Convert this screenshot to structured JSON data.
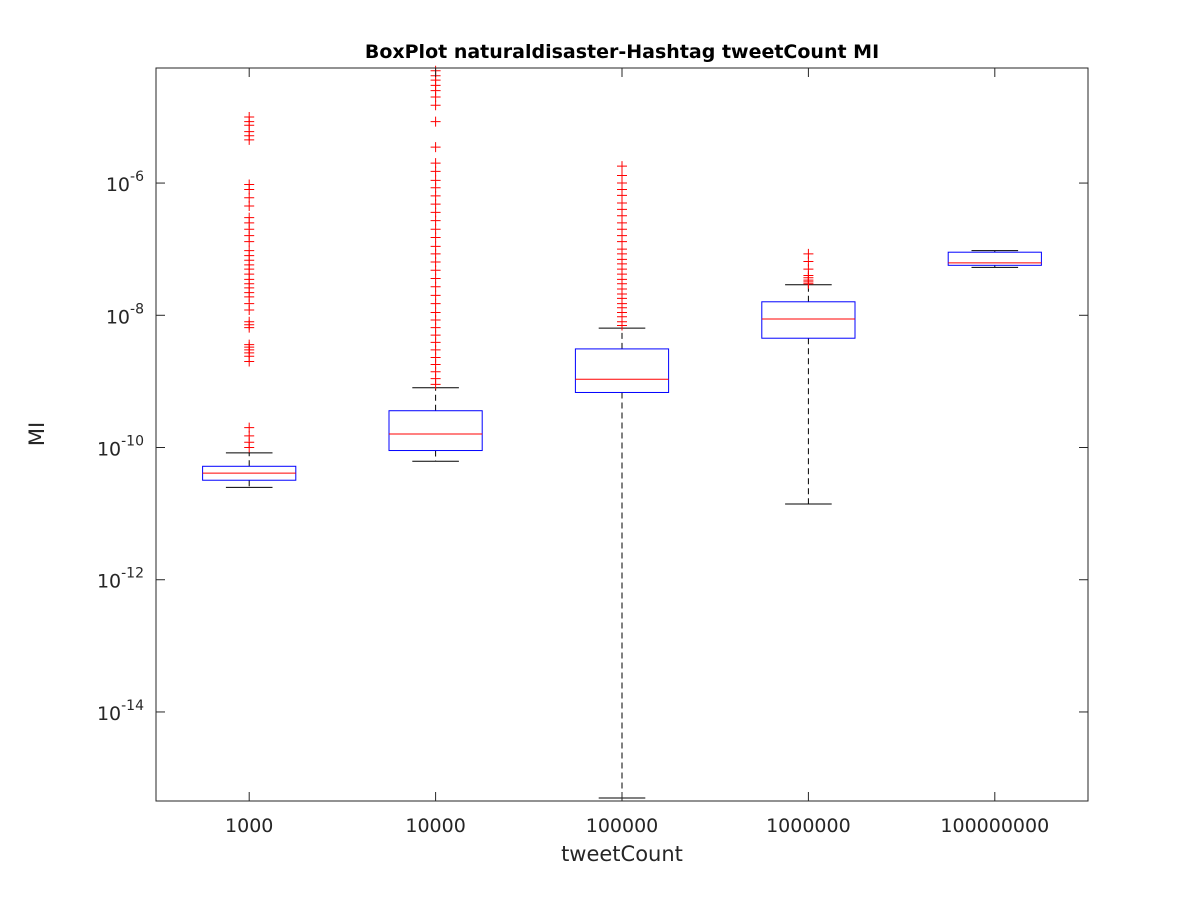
{
  "chart_data": {
    "type": "box",
    "title": "BoxPlot naturaldisaster-Hashtag tweetCount MI",
    "xlabel": "tweetCount",
    "ylabel": "MI",
    "y_scale": "log",
    "ylim": [
      4.5e-16,
      5.5e-05
    ],
    "y_ticks": [
      1e-14,
      1e-12,
      1e-10,
      1e-08,
      1e-06
    ],
    "y_tick_labels": [
      {
        "base": "10",
        "exp": "-14"
      },
      {
        "base": "10",
        "exp": "-12"
      },
      {
        "base": "10",
        "exp": "-10"
      },
      {
        "base": "10",
        "exp": "-8"
      },
      {
        "base": "10",
        "exp": "-6"
      }
    ],
    "grid": false,
    "colors": {
      "box": "#0000ff",
      "median": "#ff0000",
      "whisker": "#000000",
      "outlier": "#ff0000",
      "axis": "#262626"
    },
    "categories": [
      "1000",
      "10000",
      "100000",
      "1000000",
      "100000000"
    ],
    "boxes": [
      {
        "category": "1000",
        "whisker_low": 2.5e-11,
        "q1": 3.2e-11,
        "median": 4.1e-11,
        "q3": 5.2e-11,
        "whisker_high": 8.3e-11,
        "outliers": [
          1e-10,
          1.2e-10,
          1.5e-10,
          2e-10,
          2e-09,
          2.4e-09,
          2.7e-09,
          3e-09,
          3.3e-09,
          3.6e-09,
          6.5e-09,
          7.2e-09,
          8e-09,
          1.2e-08,
          1.5e-08,
          1.9e-08,
          2.2e-08,
          2.6e-08,
          3e-08,
          3.5e-08,
          4.2e-08,
          5e-08,
          5.8e-08,
          6.8e-08,
          8e-08,
          9.5e-08,
          1.3e-07,
          1.6e-07,
          2e-07,
          2.5e-07,
          3e-07,
          4.5e-07,
          6e-07,
          8e-07,
          9.5e-07,
          4.5e-06,
          5.2e-06,
          6e-06,
          7.5e-06,
          8.5e-06,
          1e-05
        ]
      },
      {
        "category": "10000",
        "whisker_low": 6.2e-11,
        "q1": 9e-11,
        "median": 1.6e-10,
        "q3": 3.6e-10,
        "whisker_high": 8e-10,
        "outliers": [
          9e-10,
          1.1e-09,
          1.4e-09,
          1.8e-09,
          2.3e-09,
          3e-09,
          3.9e-09,
          5e-09,
          6.5e-09,
          8.5e-09,
          1.1e-08,
          1.5e-08,
          2e-08,
          2.7e-08,
          3.6e-08,
          4.8e-08,
          6.4e-08,
          8.5e-08,
          1.1e-07,
          1.5e-07,
          2e-07,
          2.7e-07,
          3.6e-07,
          4.8e-07,
          6.4e-07,
          8.5e-07,
          1.1e-06,
          1.5e-06,
          2e-06,
          3.5e-06,
          8.5e-06,
          1.5e-05,
          2e-05,
          2.5e-05,
          3e-05,
          3.6e-05,
          4.2e-05,
          5e-05
        ]
      },
      {
        "category": "100000",
        "whisker_low": 5e-16,
        "q1": 6.8e-10,
        "median": 1.08e-09,
        "q3": 3.1e-09,
        "whisker_high": 6.4e-09,
        "outliers": [
          7e-09,
          8e-09,
          9.5e-09,
          1.1e-08,
          1.3e-08,
          1.5e-08,
          1.8e-08,
          2.1e-08,
          2.5e-08,
          3e-08,
          3.5e-08,
          4.2e-08,
          5e-08,
          6e-08,
          7e-08,
          8.5e-08,
          1e-07,
          1.3e-07,
          1.6e-07,
          2e-07,
          2.5e-07,
          3.2e-07,
          4e-07,
          5e-07,
          6.5e-07,
          8e-07,
          1e-06,
          1.3e-06,
          1.8e-06
        ]
      },
      {
        "category": "1000000",
        "whisker_low": 1.4e-11,
        "q1": 4.5e-09,
        "median": 8.8e-09,
        "q3": 1.6e-08,
        "whisker_high": 2.9e-08,
        "outliers": [
          3e-08,
          3.2e-08,
          3.4e-08,
          3.7e-08,
          4e-08,
          5e-08,
          6.5e-08,
          8.5e-08
        ]
      },
      {
        "category": "100000000",
        "whisker_low": 5.3e-08,
        "q1": 5.7e-08,
        "median": 6.2e-08,
        "q3": 9e-08,
        "whisker_high": 9.5e-08,
        "outliers": []
      }
    ]
  }
}
